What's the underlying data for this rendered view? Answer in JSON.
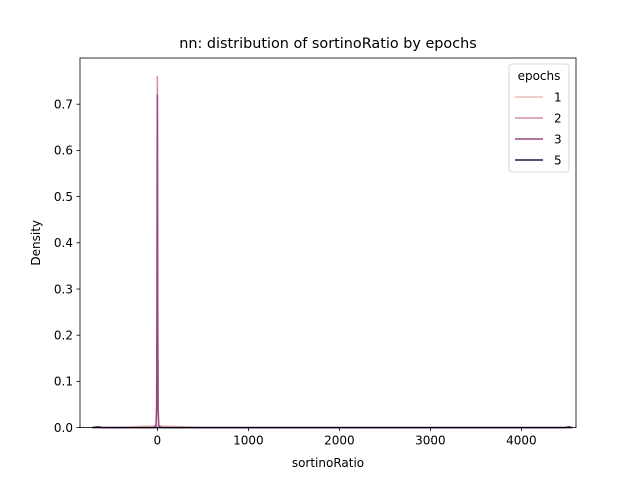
{
  "chart_data": {
    "type": "line",
    "title": "nn: distribution of sortinoRatio by epochs",
    "xlabel": "sortinoRatio",
    "ylabel": "Density",
    "xlim": [
      -850,
      4600
    ],
    "ylim": [
      0.0,
      0.8
    ],
    "xticks": [
      0,
      1000,
      2000,
      3000,
      4000
    ],
    "yticks": [
      0.0,
      0.1,
      0.2,
      0.3,
      0.4,
      0.5,
      0.6,
      0.7
    ],
    "grid": false,
    "legend": {
      "title": "epochs",
      "placement": "top-right"
    },
    "series": [
      {
        "name": "1",
        "color": "#ebbdbd",
        "x": [
          -700,
          -300,
          -150,
          0,
          150,
          300,
          450,
          700,
          1500,
          3000,
          4550
        ],
        "y": [
          0.0,
          0.001,
          0.003,
          0.004,
          0.003,
          0.0015,
          0.0005,
          0.0,
          0.0,
          0.0,
          0.0
        ]
      },
      {
        "name": "2",
        "color": "#d48ea8",
        "x": [
          -700,
          -40,
          -15,
          -8,
          -4,
          -2,
          0,
          2,
          4,
          8,
          15,
          40,
          1000,
          4550
        ],
        "y": [
          0.0,
          0.0,
          0.005,
          0.05,
          0.3,
          0.6,
          0.76,
          0.6,
          0.3,
          0.05,
          0.005,
          0.0,
          0.0,
          0.0
        ]
      },
      {
        "name": "3",
        "color": "#96497a",
        "x": [
          -700,
          -40,
          -15,
          -8,
          -4,
          -2,
          0,
          2,
          4,
          8,
          15,
          40,
          1000,
          4550
        ],
        "y": [
          0.0,
          0.0,
          0.004,
          0.04,
          0.25,
          0.55,
          0.72,
          0.55,
          0.25,
          0.04,
          0.004,
          0.0,
          0.0,
          0.0
        ]
      },
      {
        "name": "5",
        "color": "#231a3d",
        "x": [
          -720,
          -650,
          -600,
          -100,
          0,
          100,
          4480,
          4520,
          4560
        ],
        "y": [
          0.0,
          0.0015,
          0.0,
          0.0,
          0.0,
          0.0,
          0.0,
          0.0015,
          0.0
        ]
      }
    ]
  }
}
